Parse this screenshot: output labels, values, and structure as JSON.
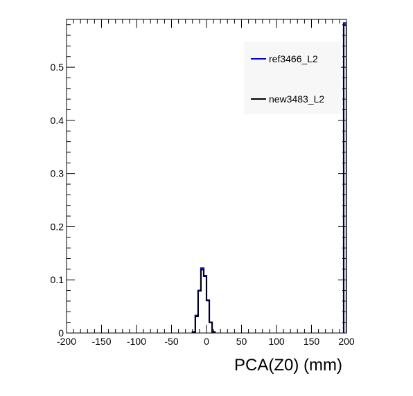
{
  "chart_data": {
    "type": "line",
    "title": "",
    "xlabel": "PCA(Z0) (mm)",
    "ylabel": "",
    "xlim": [
      -200,
      200
    ],
    "ylim": [
      0,
      0.59
    ],
    "x_ticks": [
      -200,
      -150,
      -100,
      -50,
      0,
      50,
      100,
      150,
      200
    ],
    "x_tick_labels": [
      "-200",
      "-150",
      "-100",
      "-50",
      "0",
      "50",
      "100",
      "150",
      "200"
    ],
    "y_ticks": [
      0,
      0.1,
      0.2,
      0.3,
      0.4,
      0.5
    ],
    "y_tick_labels": [
      "0",
      "0.1",
      "0.2",
      "0.3",
      "0.4",
      "0.5"
    ],
    "grid": false,
    "legend_position": "top-right",
    "bin_width": 4,
    "series": [
      {
        "name": "ref3466_L2",
        "color": "#0000cc",
        "bins": [
          {
            "x0": -20,
            "y": 0.002
          },
          {
            "x0": -16,
            "y": 0.033
          },
          {
            "x0": -12,
            "y": 0.08
          },
          {
            "x0": -8,
            "y": 0.122
          },
          {
            "x0": -4,
            "y": 0.107
          },
          {
            "x0": 0,
            "y": 0.061
          },
          {
            "x0": 4,
            "y": 0.02
          },
          {
            "x0": 8,
            "y": 0.002
          },
          {
            "x0": 196,
            "y": 0.583
          }
        ]
      },
      {
        "name": "new3483_L2",
        "color": "#000000",
        "bins": [
          {
            "x0": -20,
            "y": 0.002
          },
          {
            "x0": -16,
            "y": 0.031
          },
          {
            "x0": -12,
            "y": 0.079
          },
          {
            "x0": -8,
            "y": 0.119
          },
          {
            "x0": -4,
            "y": 0.108
          },
          {
            "x0": 0,
            "y": 0.062
          },
          {
            "x0": 4,
            "y": 0.02
          },
          {
            "x0": 8,
            "y": 0.002
          },
          {
            "x0": 196,
            "y": 0.579
          }
        ]
      }
    ]
  }
}
